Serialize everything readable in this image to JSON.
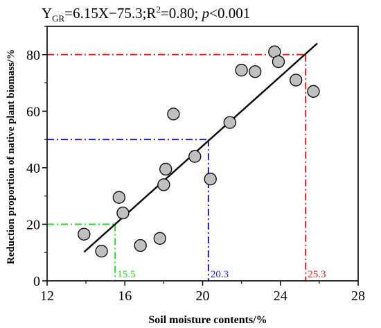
{
  "chart_data": {
    "type": "scatter",
    "title": "",
    "equation": {
      "y_symbol": "Y",
      "y_subscript": "GR",
      "formula": "=6.15X−75.3;R",
      "r_power": "2",
      "r_value": "=0.80; ",
      "p_symbol": "p",
      "p_value": "<0.001"
    },
    "xlabel": "Soil moisture contents/%",
    "ylabel": "Reduction proportion of native plant biomass/%",
    "xlim": [
      12,
      28
    ],
    "ylim": [
      0,
      90
    ],
    "xticks": [
      12,
      16,
      20,
      24,
      28
    ],
    "yticks": [
      0,
      20,
      40,
      60,
      80
    ],
    "grid": false,
    "marker_color": "#c0c0c0",
    "points": [
      {
        "x": 13.9,
        "y": 16.5
      },
      {
        "x": 14.8,
        "y": 10.5
      },
      {
        "x": 15.7,
        "y": 29.5
      },
      {
        "x": 15.9,
        "y": 24.0
      },
      {
        "x": 16.8,
        "y": 12.5
      },
      {
        "x": 17.8,
        "y": 15.0
      },
      {
        "x": 18.0,
        "y": 34.0
      },
      {
        "x": 18.1,
        "y": 39.5
      },
      {
        "x": 18.5,
        "y": 59.0
      },
      {
        "x": 19.6,
        "y": 44.0
      },
      {
        "x": 20.4,
        "y": 36.0
      },
      {
        "x": 21.4,
        "y": 56.0
      },
      {
        "x": 22.0,
        "y": 74.5
      },
      {
        "x": 22.7,
        "y": 74.0
      },
      {
        "x": 23.7,
        "y": 81.0
      },
      {
        "x": 23.9,
        "y": 77.5
      },
      {
        "x": 24.8,
        "y": 71.0
      },
      {
        "x": 25.7,
        "y": 67.0
      }
    ],
    "fit_line": {
      "slope": 6.15,
      "intercept": -75.3,
      "x_range": [
        13.9,
        25.9
      ],
      "color": "#000000"
    },
    "reference_lines": [
      {
        "x": 15.5,
        "y": 20,
        "label": "15.5",
        "color": "#22dd22"
      },
      {
        "x": 20.3,
        "y": 50,
        "label": "20.3",
        "color": "#1f1fbf"
      },
      {
        "x": 25.3,
        "y": 80,
        "label": "25.3",
        "color": "#e01b1b"
      }
    ]
  }
}
